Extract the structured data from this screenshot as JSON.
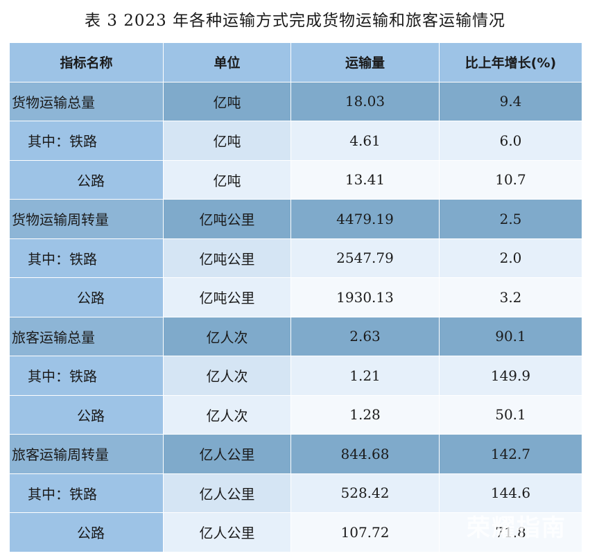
{
  "title": "表 3  2023 年各种运输方式完成货物运输和旅客运输情况",
  "headers": [
    "指标名称",
    "单位",
    "运输量",
    "比上年增长(%)"
  ],
  "rows": [
    {
      "name": "货物运输总量",
      "unit": "亿吨",
      "volume": "18.03",
      "growth": "9.4",
      "level": 0
    },
    {
      "name": "其中：铁路",
      "unit": "亿吨",
      "volume": "4.61",
      "growth": "6.0",
      "level": 1
    },
    {
      "name": "公路",
      "unit": "亿吨",
      "volume": "13.41",
      "growth": "10.7",
      "level": 2
    },
    {
      "name": "货物运输周转量",
      "unit": "亿吨公里",
      "volume": "4479.19",
      "growth": "2.5",
      "level": 0
    },
    {
      "name": "其中：铁路",
      "unit": "亿吨公里",
      "volume": "2547.79",
      "growth": "2.0",
      "level": 1
    },
    {
      "name": "公路",
      "unit": "亿吨公里",
      "volume": "1930.13",
      "growth": "3.2",
      "level": 2
    },
    {
      "name": "旅客运输总量",
      "unit": "亿人次",
      "volume": "2.63",
      "growth": "90.1",
      "level": 0
    },
    {
      "name": "其中：铁路",
      "unit": "亿人次",
      "volume": "1.21",
      "growth": "149.9",
      "level": 1
    },
    {
      "name": "公路",
      "unit": "亿人次",
      "volume": "1.28",
      "growth": "50.1",
      "level": 2
    },
    {
      "name": "旅客运输周转量",
      "unit": "亿人公里",
      "volume": "844.68",
      "growth": "142.7",
      "level": 0
    },
    {
      "name": "其中：铁路",
      "unit": "亿人公里",
      "volume": "528.42",
      "growth": "144.6",
      "level": 1
    },
    {
      "name": "公路",
      "unit": "亿人公里",
      "volume": "107.72",
      "growth": "71.8",
      "level": 2
    }
  ],
  "watermark": "荣耀指南"
}
